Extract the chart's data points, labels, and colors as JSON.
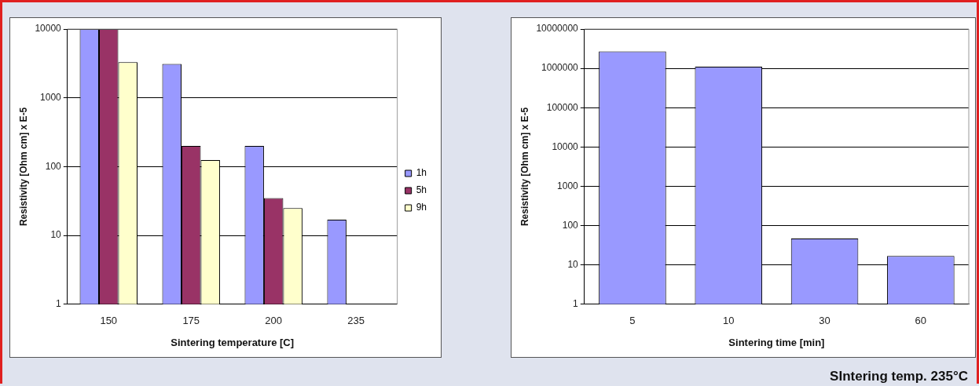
{
  "chart_data": [
    {
      "type": "bar",
      "xlabel": "Sintering temperature [C]",
      "ylabel": "Resistivity [Ohm cm] x E-5",
      "categories": [
        "150",
        "175",
        "200",
        "235"
      ],
      "series": [
        {
          "name": "1h",
          "color": "#9999ff",
          "values": [
            10000,
            3100,
            200,
            17
          ]
        },
        {
          "name": "5h",
          "color": "#993366",
          "values": [
            10000,
            200,
            35,
            null
          ]
        },
        {
          "name": "9h",
          "color": "#ffffcc",
          "values": [
            3300,
            125,
            25,
            null
          ]
        }
      ],
      "log": "y",
      "ylim": [
        1,
        10000
      ],
      "yticks": [
        1,
        10,
        100,
        1000,
        10000
      ],
      "grid": "y",
      "legend": "right"
    },
    {
      "type": "bar",
      "xlabel": "Sintering time [min]",
      "ylabel": "Resistivity [Ohm cm] x E-5",
      "categories": [
        "5",
        "10",
        "30",
        "60"
      ],
      "series": [
        {
          "color": "#9999ff",
          "values": [
            2700000,
            1100000,
            47,
            17
          ]
        }
      ],
      "log": "y",
      "ylim": [
        1,
        10000000
      ],
      "yticks": [
        1,
        10,
        100,
        1000,
        10000,
        100000,
        1000000,
        10000000
      ],
      "grid": "y",
      "legend": false,
      "annotations": [
        "SIntering temp. 235°C"
      ]
    }
  ]
}
